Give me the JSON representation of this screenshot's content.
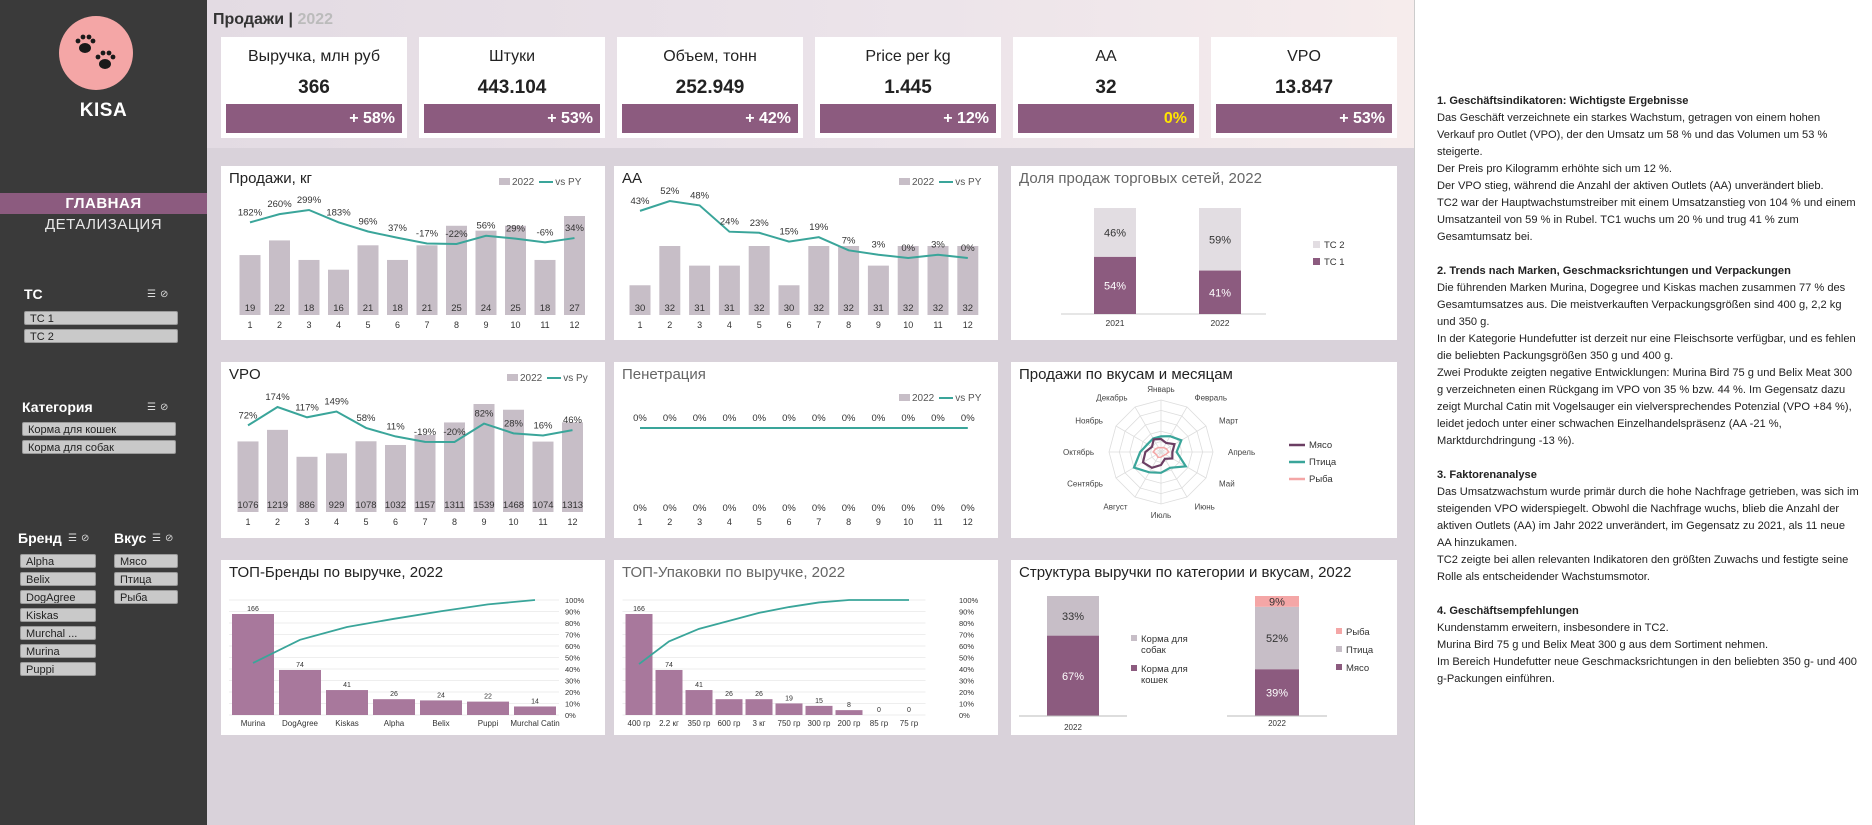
{
  "brand": "KISA",
  "nav": {
    "main": "ГЛАВНАЯ",
    "details": "ДЕТАЛИЗАЦИЯ"
  },
  "slicers": {
    "tc": {
      "title": "TC",
      "items": [
        "TC 1",
        "TC 2"
      ]
    },
    "category": {
      "title": "Категория",
      "items": [
        "Корма для кошек",
        "Корма для собак"
      ]
    },
    "brand": {
      "title": "Бренд",
      "items": [
        "Alpha",
        "Belix",
        "DogAgree",
        "Kiskas",
        "Murchal ...",
        "Murina",
        "Puppi"
      ]
    },
    "taste": {
      "title": "Вкус",
      "items": [
        "Мясо",
        "Птица",
        "Рыба"
      ]
    }
  },
  "page": {
    "title": "Продажи",
    "sep": "|",
    "year": "2022"
  },
  "kpis": [
    {
      "label": "Выручка, млн руб",
      "value": "366",
      "change": "+ 58%"
    },
    {
      "label": "Штуки",
      "value": "443.104",
      "change": "+ 53%"
    },
    {
      "label": "Объем, тонн",
      "value": "252.949",
      "change": "+ 42%"
    },
    {
      "label": "Price per kg",
      "value": "1.445",
      "change": "+ 12%"
    },
    {
      "label": "AA",
      "value": "32",
      "change": "0%"
    },
    {
      "label": "VPO",
      "value": "13.847",
      "change": "+ 53%"
    }
  ],
  "colors": {
    "accent": "#8c5b7f",
    "bar_gray": "#c7bec7",
    "line_teal": "#3aa59a",
    "yellow": "#ffe600",
    "pink": "#f4a6a6"
  },
  "legend_labels": {
    "year": "2022",
    "vspy": "vs PY"
  },
  "panels": {
    "sales": "Продажи, кг",
    "aa": "AA",
    "share": "Доля продаж торговых сетей, 2022",
    "vpo": "VPO",
    "pen": "Пенетрация",
    "radar": "Продажи по вкусам и месяцам",
    "topbrands": "ТОП-Бренды по выручке, 2022",
    "toppack": "ТОП-Упаковки по выручке, 2022",
    "struct": "Структура выручки по категории и вкусам, 2022"
  },
  "chart_data": [
    {
      "id": "sales",
      "type": "bar",
      "categories": [
        "1",
        "2",
        "3",
        "4",
        "5",
        "6",
        "7",
        "8",
        "9",
        "10",
        "11",
        "12"
      ],
      "series": [
        {
          "name": "2022",
          "values": [
            19,
            22,
            18,
            16,
            21,
            18,
            21,
            25,
            24,
            25,
            18,
            27
          ]
        },
        {
          "name": "vs PY",
          "values": [
            "182%",
            "260%",
            "299%",
            "183%",
            "96%",
            "37%",
            "-17%",
            "-22%",
            "56%",
            "29%",
            "-6%",
            "34%"
          ]
        }
      ]
    },
    {
      "id": "aa",
      "type": "bar",
      "categories": [
        "1",
        "2",
        "3",
        "4",
        "5",
        "6",
        "7",
        "8",
        "9",
        "10",
        "11",
        "12"
      ],
      "series": [
        {
          "name": "2022",
          "values": [
            30,
            32,
            31,
            31,
            32,
            30,
            32,
            32,
            31,
            32,
            32,
            32
          ]
        },
        {
          "name": "vs PY",
          "values": [
            "43%",
            "52%",
            "48%",
            "24%",
            "23%",
            "15%",
            "19%",
            "7%",
            "3%",
            "0%",
            "3%",
            "0%"
          ]
        }
      ]
    },
    {
      "id": "share",
      "type": "bar",
      "categories": [
        "2021",
        "2022"
      ],
      "series": [
        {
          "name": "TC 2",
          "values": [
            "46%",
            "59%"
          ]
        },
        {
          "name": "TC 1",
          "values": [
            "54%",
            "41%"
          ]
        }
      ]
    },
    {
      "id": "vpo",
      "type": "bar",
      "categories": [
        "1",
        "2",
        "3",
        "4",
        "5",
        "6",
        "7",
        "8",
        "9",
        "10",
        "11",
        "12"
      ],
      "series": [
        {
          "name": "2022",
          "values": [
            1076,
            1219,
            886,
            929,
            1078,
            1032,
            1157,
            1311,
            1539,
            1468,
            1074,
            1313
          ]
        },
        {
          "name": "vs Py",
          "values": [
            "72%",
            "174%",
            "117%",
            "149%",
            "58%",
            "11%",
            "-19%",
            "-20%",
            "82%",
            "28%",
            "16%",
            "46%"
          ]
        }
      ]
    },
    {
      "id": "pen",
      "type": "bar",
      "categories": [
        "1",
        "2",
        "3",
        "4",
        "5",
        "6",
        "7",
        "8",
        "9",
        "10",
        "11",
        "12"
      ],
      "series": [
        {
          "name": "2022",
          "values": [
            "0%",
            "0%",
            "0%",
            "0%",
            "0%",
            "0%",
            "0%",
            "0%",
            "0%",
            "0%",
            "0%",
            "0%"
          ]
        },
        {
          "name": "vs PY",
          "values": [
            "0%",
            "0%",
            "0%",
            "0%",
            "0%",
            "0%",
            "0%",
            "0%",
            "0%",
            "0%",
            "0%",
            "0%"
          ]
        }
      ]
    },
    {
      "id": "radar",
      "type": "radar",
      "axes": [
        "Январь",
        "Февраль",
        "Март",
        "Апрель",
        "Май",
        "Июнь",
        "Июль",
        "Август",
        "Сентябрь",
        "Октябрь",
        "Ноябрь",
        "Декабрь"
      ],
      "series": [
        {
          "name": "Мясо"
        },
        {
          "name": "Птица"
        },
        {
          "name": "Рыба"
        }
      ]
    },
    {
      "id": "topbrands",
      "type": "bar",
      "categories": [
        "Murina",
        "DogAgree",
        "Kiskas",
        "Alpha",
        "Belix",
        "Puppi",
        "Murchal Catin"
      ],
      "values": [
        166,
        74,
        41,
        26,
        24,
        22,
        14
      ],
      "y2_ticks": [
        "100%",
        "90%",
        "80%",
        "70%",
        "60%",
        "50%",
        "40%",
        "30%",
        "20%",
        "10%",
        "0%"
      ]
    },
    {
      "id": "toppack",
      "type": "bar",
      "categories": [
        "400 гр",
        "2.2 кг",
        "350 гр",
        "600 гр",
        "3 кг",
        "750 гр",
        "300 гр",
        "200 гр",
        "85 гр",
        "75 гр"
      ],
      "values": [
        166,
        74,
        41,
        26,
        26,
        19,
        15,
        8,
        0,
        0
      ],
      "y2_ticks": [
        "100%",
        "90%",
        "80%",
        "70%",
        "60%",
        "50%",
        "40%",
        "30%",
        "20%",
        "10%",
        "0%"
      ]
    },
    {
      "id": "struct",
      "type": "bar",
      "categories": [
        "2022",
        "2022"
      ],
      "groups": [
        {
          "series": [
            {
              "name": "Корма для собак",
              "value": "33%"
            },
            {
              "name": "Корма для кошек",
              "value": "67%"
            }
          ]
        },
        {
          "series": [
            {
              "name": "Рыба",
              "value": "9%"
            },
            {
              "name": "Птица",
              "value": "52%"
            },
            {
              "name": "Мясо",
              "value": "39%"
            }
          ]
        }
      ]
    }
  ],
  "notes": [
    {
      "title": "1. Geschäftsindikatoren: Wichtigste Ergebnisse",
      "lines": [
        "Das Geschäft verzeichnete ein starkes Wachstum, getragen von einem hohen Verkauf pro Outlet (VPO), der den Umsatz um 58 % und das Volumen um 53 % steigerte.",
        "Der Preis pro Kilogramm erhöhte sich um 12 %.",
        "Der VPO stieg, während die Anzahl der aktiven Outlets (AA) unverändert blieb.",
        "TC2 war der Hauptwachstumstreiber mit einem Umsatzanstieg von 104 % und einem Umsatzanteil von 59 % in Rubel. TC1 wuchs um 20 % und trug 41 % zum Gesamtumsatz bei."
      ]
    },
    {
      "title": "2. Trends nach Marken, Geschmacksrichtungen und Verpackungen",
      "lines": [
        "Die führenden Marken Murina, Dogegree und Kiskas machen zusammen 77 % des Gesamtumsatzes aus. Die meistverkauften Verpackungsgrößen sind 400 g, 2,2 kg und 350 g.",
        "In der Kategorie Hundefutter ist derzeit nur eine Fleischsorte verfügbar, und es fehlen die beliebten Packungsgrößen 350 g und 400 g.",
        "Zwei Produkte zeigten negative Entwicklungen: Murina Bird 75 g und Belix Meat 300 g verzeichneten einen Rückgang im VPO von 35 % bzw. 44 %. Im Gegensatz dazu zeigt Murchal Catin mit Vogelsauger ein vielversprechendes Potenzial (VPO +84 %), leidet jedoch unter einer schwachen Einzelhandelspräsenz (AA -21 %, Marktdurchdringung -13 %)."
      ]
    },
    {
      "title": "3. Faktorenanalyse",
      "lines": [
        "Das Umsatzwachstum wurde primär durch die hohe Nachfrage getrieben, was sich im steigenden VPO widerspiegelt. Obwohl die Nachfrage wuchs, blieb die Anzahl der aktiven Outlets (AA) im Jahr 2022 unverändert, im Gegensatz zu 2021, als 11 neue AA hinzukamen.",
        "TC2 zeigte bei allen relevanten Indikatoren den größten Zuwachs und festigte seine Rolle als entscheidender Wachstumsmotor."
      ]
    },
    {
      "title": "4. Geschäftsempfehlungen",
      "lines": [
        "Kundenstamm erweitern, insbesondere in TC2.",
        "Murina Bird 75 g und Belix Meat 300 g aus dem Sortiment nehmen.",
        "Im Bereich Hundefutter neue Geschmacksrichtungen in den beliebten 350 g- und 400 g-Packungen einführen."
      ]
    }
  ]
}
